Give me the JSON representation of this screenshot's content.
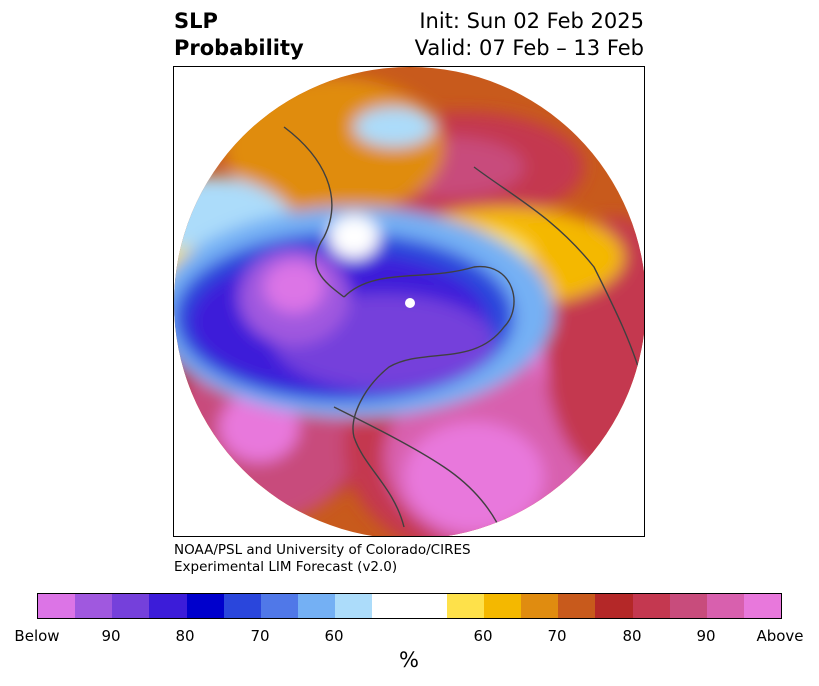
{
  "title": {
    "left_line1": "SLP",
    "left_line2": "Probability",
    "right_line1": "Init: Sun 02 Feb 2025",
    "right_line2": "Valid: 07 Feb – 13 Feb"
  },
  "credit": {
    "line1": "NOAA/PSL and University of Colorado/CIRES",
    "line2": "Experimental LIM Forecast (v2.0)"
  },
  "colorbar": {
    "colors": [
      "#dc74e6",
      "#a058df",
      "#7540db",
      "#3c1cd9",
      "#0000cc",
      "#2a46dc",
      "#5078e8",
      "#74b0f4",
      "#acdcfa",
      "#ffffff",
      "#ffffff",
      "#fee14a",
      "#f4b800",
      "#e08c10",
      "#c85a1c",
      "#b42828",
      "#c43850",
      "#c84c7c",
      "#d860ae",
      "#e878dc"
    ],
    "labels": [
      "Below",
      "90",
      "80",
      "70",
      "60",
      "60",
      "70",
      "80",
      "90",
      "Above"
    ],
    "unit": "%"
  }
}
